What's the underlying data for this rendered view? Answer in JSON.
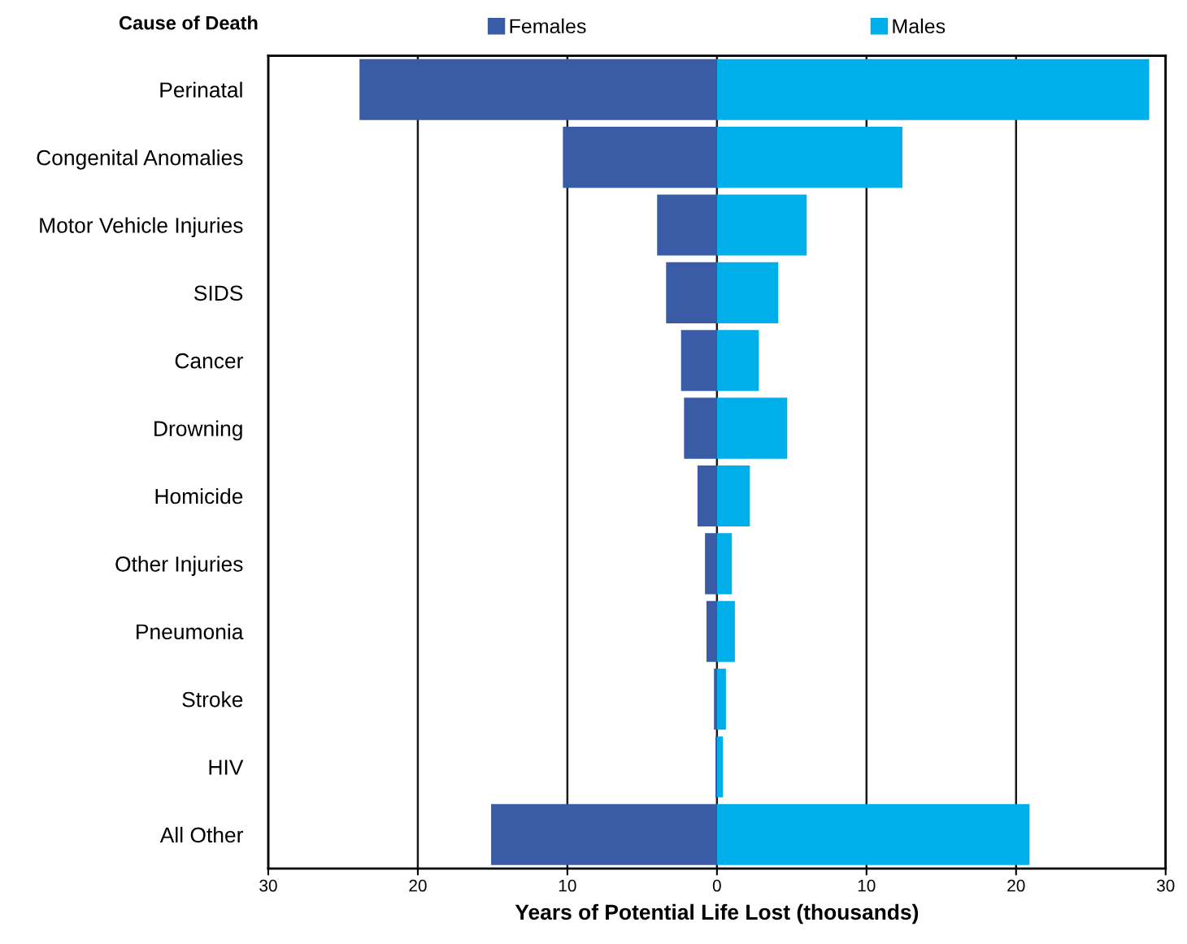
{
  "chart_data": {
    "type": "bar",
    "orientation": "horizontal",
    "stacked": true,
    "ylabel": "Cause of Death",
    "xlabel": "Years of Potential Life Lost (thousands)",
    "categories": [
      "Perinatal",
      "Congenital Anomalies",
      "Motor Vehicle Injuries",
      "SIDS",
      "Cancer",
      "Drowning",
      "Homicide",
      "Other Injuries",
      "Pneumonia",
      "Stroke",
      "HIV",
      "All Other"
    ],
    "series": [
      {
        "name": "Females",
        "color": "#3a5ba5",
        "values": [
          -23.9,
          -10.3,
          -4.0,
          -3.4,
          -2.4,
          -2.2,
          -1.3,
          -0.8,
          -0.7,
          -0.2,
          -0.1,
          -15.1
        ]
      },
      {
        "name": "Males",
        "color": "#00aeea",
        "values": [
          28.9,
          12.4,
          6.0,
          4.1,
          2.8,
          4.7,
          2.2,
          1.0,
          1.2,
          0.6,
          0.4,
          20.9
        ]
      }
    ],
    "xlim": [
      -30,
      30
    ],
    "xticks": [
      {
        "value": -30,
        "label": "30"
      },
      {
        "value": -20,
        "label": "20"
      },
      {
        "value": -10,
        "label": "10"
      },
      0,
      10,
      20,
      30
    ],
    "grid": "x",
    "legend": "top"
  }
}
